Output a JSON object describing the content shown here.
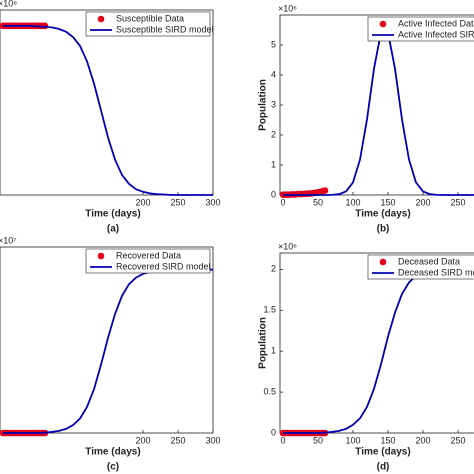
{
  "chart_data": [
    {
      "type": "line",
      "caption": "(a)",
      "x_label": "Time (days)",
      "y_multiplier": "×10⁸",
      "xlim": [
        0,
        300
      ],
      "ylim": [
        0,
        3.5
      ],
      "xticks": [
        200,
        250,
        300
      ],
      "series": [
        {
          "name": "Susceptible Data",
          "color": "#e3001b",
          "mode": "markers",
          "x": [
            0,
            3,
            6,
            9,
            12,
            15,
            18,
            21,
            24,
            27,
            30,
            33,
            36,
            39,
            42,
            45,
            48,
            51,
            54,
            57,
            60
          ],
          "values": [
            3.2,
            3.2,
            3.2,
            3.2,
            3.2,
            3.2,
            3.2,
            3.2,
            3.2,
            3.2,
            3.2,
            3.2,
            3.2,
            3.2,
            3.2,
            3.2,
            3.2,
            3.2,
            3.2,
            3.2,
            3.2
          ]
        },
        {
          "name": "Susceptible SIRD model",
          "color": "#0000b0",
          "mode": "line",
          "x": [
            0,
            10,
            20,
            30,
            40,
            50,
            60,
            70,
            80,
            90,
            100,
            110,
            120,
            130,
            140,
            150,
            160,
            170,
            180,
            190,
            200,
            210,
            220,
            230,
            240,
            250,
            260,
            270,
            280,
            290,
            300
          ],
          "values": [
            3.2,
            3.2,
            3.2,
            3.2,
            3.2,
            3.19,
            3.18,
            3.17,
            3.14,
            3.09,
            2.99,
            2.82,
            2.53,
            2.11,
            1.6,
            1.09,
            0.67,
            0.38,
            0.21,
            0.11,
            0.06,
            0.03,
            0.015,
            0.01,
            0,
            0,
            0,
            0,
            0,
            0,
            0
          ]
        }
      ]
    },
    {
      "type": "line",
      "caption": "(b)",
      "x_label": "Time (days)",
      "y_label": "Population",
      "y_multiplier": "×10⁶",
      "xlim": [
        0,
        300
      ],
      "ylim": [
        0,
        6
      ],
      "xticks": [
        0,
        50,
        100,
        150,
        200,
        250
      ],
      "yticks": [
        0,
        1,
        2,
        3,
        4,
        5
      ],
      "series": [
        {
          "name": "Active Infected Data",
          "color": "#e3001b",
          "mode": "markers",
          "x": [
            0,
            3,
            6,
            9,
            12,
            15,
            18,
            21,
            24,
            27,
            30,
            33,
            36,
            39,
            42,
            45,
            48,
            51,
            54,
            57,
            60
          ],
          "values": [
            0.01,
            0.01,
            0.01,
            0.01,
            0.02,
            0.02,
            0.02,
            0.03,
            0.03,
            0.03,
            0.04,
            0.04,
            0.05,
            0.05,
            0.06,
            0.07,
            0.08,
            0.09,
            0.11,
            0.13,
            0.15
          ]
        },
        {
          "name": "Active Infected SIRD model",
          "color": "#0000b0",
          "mode": "line",
          "x": [
            0,
            10,
            20,
            30,
            40,
            50,
            60,
            70,
            80,
            90,
            100,
            110,
            120,
            130,
            140,
            150,
            160,
            170,
            180,
            190,
            200,
            210,
            220,
            230,
            240,
            250,
            260,
            270,
            280,
            290,
            300
          ],
          "values": [
            0,
            0,
            0,
            0,
            0,
            0,
            0,
            0.004,
            0.026,
            0.12,
            0.42,
            1.18,
            2.52,
            4.21,
            5.42,
            5.42,
            4.21,
            2.52,
            1.18,
            0.42,
            0.12,
            0.026,
            0.004,
            0,
            0,
            0,
            0,
            0,
            0,
            0,
            0
          ]
        }
      ]
    },
    {
      "type": "line",
      "caption": "(c)",
      "x_label": "Time (days)",
      "y_multiplier": "×10⁷",
      "xlim": [
        0,
        300
      ],
      "ylim": [
        0,
        4.5
      ],
      "xticks": [
        200,
        250,
        300
      ],
      "series": [
        {
          "name": "Recovered Data",
          "color": "#e3001b",
          "mode": "markers",
          "x": [
            0,
            3,
            6,
            9,
            12,
            15,
            18,
            21,
            24,
            27,
            30,
            33,
            36,
            39,
            42,
            45,
            48,
            51,
            54,
            57,
            60
          ],
          "values": [
            0,
            0,
            0,
            0,
            0,
            0,
            0,
            0,
            0,
            0,
            0,
            0,
            0,
            0,
            0,
            0,
            0,
            0,
            0,
            0,
            0
          ]
        },
        {
          "name": "Recovered SIRD model",
          "color": "#0000b0",
          "mode": "line",
          "x": [
            0,
            10,
            20,
            30,
            40,
            50,
            60,
            70,
            80,
            90,
            100,
            110,
            120,
            130,
            140,
            150,
            160,
            170,
            180,
            190,
            200,
            210,
            220,
            230,
            240,
            250,
            260,
            270,
            280,
            290,
            300
          ],
          "values": [
            0,
            0,
            0,
            0,
            0,
            0,
            0.01,
            0.026,
            0.05,
            0.1,
            0.19,
            0.35,
            0.63,
            1.06,
            1.65,
            2.3,
            2.88,
            3.32,
            3.6,
            3.76,
            3.85,
            3.9,
            3.92,
            3.94,
            3.95,
            3.95,
            3.95,
            3.95,
            3.95,
            3.95,
            3.95
          ]
        }
      ]
    },
    {
      "type": "line",
      "caption": "(d)",
      "x_label": "Time (days)",
      "y_label": "Population",
      "y_multiplier": "×10⁶",
      "xlim": [
        0,
        300
      ],
      "ylim": [
        0,
        2.2
      ],
      "xticks": [
        0,
        50,
        100,
        150,
        200,
        250
      ],
      "yticks": [
        0,
        0.5,
        1,
        1.5,
        2
      ],
      "series": [
        {
          "name": "Deceased Data",
          "color": "#e3001b",
          "mode": "markers",
          "x": [
            0,
            3,
            6,
            9,
            12,
            15,
            18,
            21,
            24,
            27,
            30,
            33,
            36,
            39,
            42,
            45,
            48,
            51,
            54,
            57,
            60
          ],
          "values": [
            0,
            0,
            0,
            0,
            0,
            0,
            0,
            0,
            0,
            0,
            0,
            0,
            0,
            0,
            0,
            0,
            0,
            0,
            0,
            0,
            0
          ]
        },
        {
          "name": "Deceased SIRD model",
          "color": "#0000b0",
          "mode": "line",
          "x": [
            0,
            10,
            20,
            30,
            40,
            50,
            60,
            70,
            80,
            90,
            100,
            110,
            120,
            130,
            140,
            150,
            160,
            170,
            180,
            190,
            200,
            210,
            220,
            230,
            240,
            250,
            260,
            270,
            280,
            290,
            300
          ],
          "values": [
            0,
            0,
            0,
            0,
            0,
            0,
            0.005,
            0.013,
            0.026,
            0.05,
            0.1,
            0.18,
            0.32,
            0.54,
            0.84,
            1.18,
            1.47,
            1.7,
            1.84,
            1.92,
            1.97,
            1.99,
            2.0,
            2.01,
            2.02,
            2.02,
            2.02,
            2.02,
            2.02,
            2.02,
            2.02
          ]
        }
      ]
    }
  ]
}
